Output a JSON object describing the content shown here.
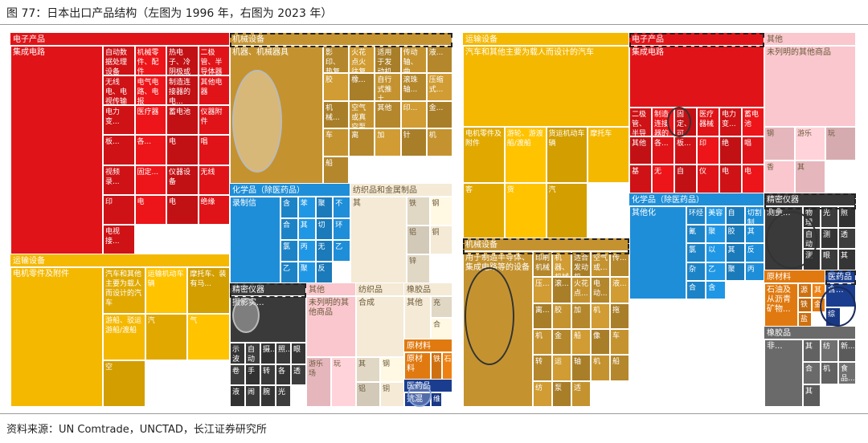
{
  "figure": {
    "title": "图 77：日本出口产品结构（左图为 1996 年，右图为 2023 年）",
    "source": "资料来源：UN Comtrade，UNCTAD，长江证券研究所"
  },
  "colors": {
    "electronics": "#e01418",
    "transport": "#f5b800",
    "machinery": "#c49330",
    "chemicals": "#1e8ed8",
    "precision": "#3a3a3a",
    "other": "#f9c7cd",
    "textiles": "#f4ead6",
    "raw": "#e07a10",
    "food": "#b3b3b3",
    "rubber": "#6a6a6a",
    "health": "#1a3d8f"
  },
  "chart_data": [
    {
      "type": "treemap",
      "title": "1996",
      "groups": [
        {
          "name": "电子产品",
          "key": "electronics",
          "items": [
            "集成电路",
            "自动数据处理设备",
            "机械零件、配件",
            "热电子、冷阴极或光阴极",
            "二极管、半导体器件",
            "无线电、电视传输设备",
            "电气电路、电报",
            "制造连接器的电...",
            "其他电器",
            "电力变...",
            "医疗器",
            "蓄电池",
            "仪器附件",
            "板...",
            "各...",
            "电",
            "唱",
            "视频录...",
            "固定...",
            "仪器设备",
            "无线",
            "印",
            "电",
            "电",
            "绝缘",
            "电视接..."
          ]
        },
        {
          "name": "运输设备",
          "key": "transport",
          "items": [
            "电机零件及附件",
            "汽车和其他主要为载人而设计的汽车",
            "运输机动车辆",
            "摩托车、装有马...",
            "游船、驳运游船/渡船",
            "汽",
            "气",
            "空"
          ]
        },
        {
          "name": "机械设备",
          "key": "machinery",
          "items": [
            "机器、机械器具",
            "影印、热复印设备",
            "火花点火往复式或旋...",
            "适用于发动机的...",
            "传动轴、曲",
            "液...",
            "胶",
            "橡...",
            "自行式推土",
            "滚珠轴...",
            "压缩式...",
            "机械...",
            "空气或真空泵",
            "其他",
            "印...",
            "金...",
            "车",
            "离",
            "加",
            "针",
            "机",
            "船"
          ]
        },
        {
          "name": "化学品（除医药品）",
          "key": "chemicals",
          "items": [
            "录制信",
            "含",
            "苯",
            "聚",
            "不",
            "合",
            "其",
            "切",
            "环",
            "氯",
            "丙",
            "无",
            "乙",
            "乙",
            "聚",
            "反"
          ]
        },
        {
          "name": "纺织品和金属制品",
          "key": "textiles",
          "items": [
            "其",
            "铁",
            "钢",
            "铝",
            "铜",
            "锌"
          ]
        },
        {
          "name": "精密仪器",
          "key": "precision",
          "items": [
            "摄影实...",
            "示波",
            "自动",
            "摄...",
            "照...",
            "眼",
            "卷",
            "手",
            "转",
            "各",
            "透",
            "液",
            "闹",
            "腕",
            "光"
          ]
        },
        {
          "name": "其他",
          "key": "other",
          "items": [
            "未列明的其他商品",
            "游乐场",
            "玩"
          ]
        },
        {
          "name": "纺织品",
          "key": "textiles",
          "items": [
            "合成",
            "其",
            "钢",
            "铝",
            "铜"
          ]
        },
        {
          "name": "橡胶品",
          "key": "textiles",
          "items": [
            "其他",
            "充",
            "合"
          ]
        },
        {
          "name": "原材料",
          "key": "raw",
          "items": [
            "原材料",
            "铁",
            "石"
          ]
        },
        {
          "name": "医药品",
          "key": "health",
          "items": [
            "抗混",
            "维"
          ]
        }
      ],
      "highlights": [
        "机械设备",
        "机器、机械器具",
        "影印、热复印设备",
        "精密仪器",
        "摄影实...",
        "抗混"
      ]
    },
    {
      "type": "treemap",
      "title": "2023",
      "groups": [
        {
          "name": "运输设备",
          "key": "transport",
          "items": [
            "汽车和其他主要为载人而设计的汽车",
            "电机零件及附件",
            "游轮、游渡船/渡船",
            "货运机动车辆",
            "摩托车",
            "客",
            "货",
            "汽"
          ]
        },
        {
          "name": "电子产品",
          "key": "electronics",
          "items": [
            "集成电路",
            "二极管、半导体...",
            "制造连接器的电...",
            "固定、可变...",
            "医疗器械",
            "电力变...",
            "蓄电池",
            "其他",
            "各...",
            "板...",
            "印",
            "绝",
            "唱",
            "基",
            "无",
            "自",
            "仪",
            "电",
            "电"
          ]
        },
        {
          "name": "其他",
          "key": "other",
          "items": [
            "未列明的其他商品",
            "钢",
            "游乐",
            "玩",
            "香",
            "其"
          ]
        },
        {
          "name": "机械设备",
          "key": "machinery",
          "items": [
            "用于制造半导体、集成电路等的设备",
            "印刷机械",
            "机器、机械器具",
            "适合发动机",
            "空气或...",
            "传...",
            "压...",
            "滚...",
            "火花点...",
            "电动...",
            "液...",
            "离...",
            "胶",
            "加",
            "机",
            "拖",
            "机",
            "金",
            "船",
            "像",
            "车",
            "转",
            "运",
            "轴",
            "机",
            "船",
            "纺",
            "泵",
            "适"
          ]
        },
        {
          "name": "化学品（除医药品）",
          "key": "chemicals",
          "items": [
            "其他化",
            "环烃",
            "美容",
            "自",
            "切割制",
            "氰",
            "聚",
            "胶",
            "其",
            "氯",
            "以",
            "其",
            "反",
            "杂",
            "乙",
            "聚",
            "丙",
            "合",
            "含"
          ]
        },
        {
          "name": "精密仪器",
          "key": "precision",
          "items": [
            "测量...",
            "物理",
            "光",
            "照",
            "自动",
            "测",
            "透",
            "测",
            "眼",
            "其"
          ]
        },
        {
          "name": "原材料",
          "key": "raw",
          "items": [
            "石油及从沥青矿物...",
            "源",
            "其",
            "铁",
            "金",
            "盐"
          ]
        },
        {
          "name": "医药品",
          "key": "health",
          "items": [
            "含...",
            "综"
          ]
        },
        {
          "name": "橡胶品",
          "key": "rubber",
          "items": [
            "非...",
            "其",
            "纺",
            "新...",
            "合",
            "机",
            "食品...",
            "其"
          ]
        }
      ],
      "highlights": [
        "电子产品",
        "机械设备",
        "精密仪器",
        "医药品",
        "蓄电池",
        "测量...",
        "用于制造半导体、集成电路等的设备",
        "含..."
      ]
    }
  ]
}
